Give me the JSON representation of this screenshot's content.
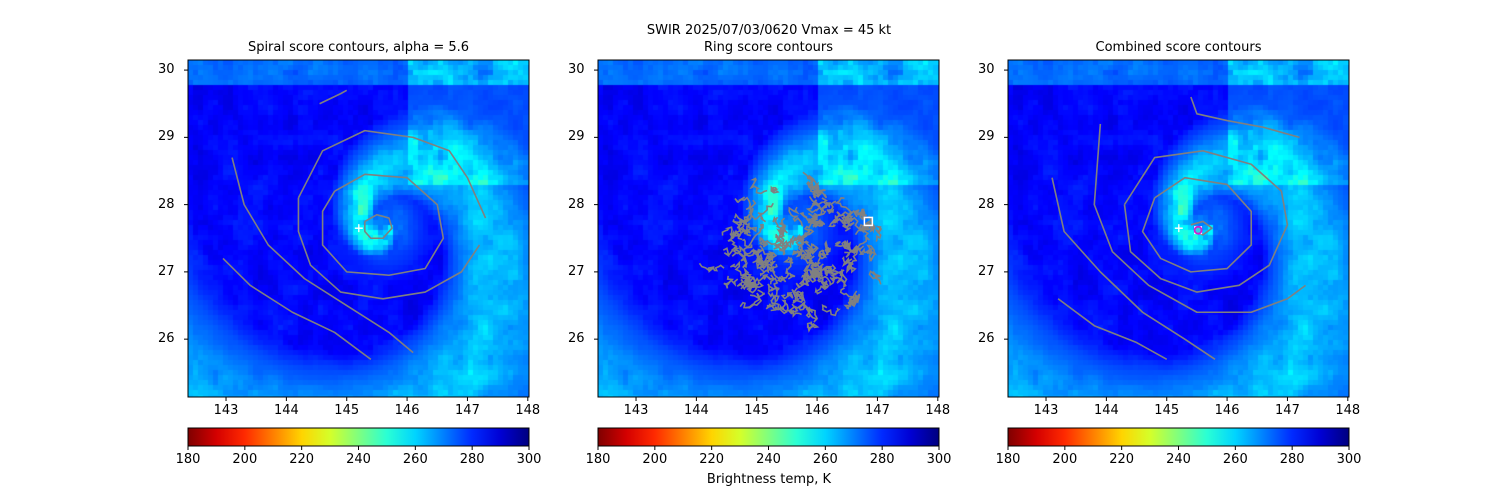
{
  "chart_data": {
    "type": "heatmap",
    "suptitle": "SWIR  2025/07/03/0620    Vmax = 45 kt",
    "colorbar": {
      "label": "Brightness temp, K",
      "range": [
        180,
        300
      ],
      "ticks": [
        "180",
        "200",
        "220",
        "240",
        "260",
        "280",
        "300"
      ],
      "colormap": "jet_reversed",
      "orientation": "horizontal"
    },
    "xlim": [
      142.37,
      148.02
    ],
    "ylim": [
      25.14,
      30.15
    ],
    "xticks": [
      "143",
      "144",
      "145",
      "146",
      "147",
      "148"
    ],
    "yticks": [
      "26",
      "27",
      "28",
      "29",
      "30"
    ],
    "contour_color": "#808080",
    "panels": [
      {
        "title": "Spiral score contours, alpha =  5.6",
        "markers": [
          {
            "type": "plus",
            "lon": 145.2,
            "lat": 27.65,
            "color": "#ffffff"
          }
        ],
        "contours": [
          [
            [
              145.3,
              27.75
            ],
            [
              145.5,
              27.85
            ],
            [
              145.7,
              27.8
            ],
            [
              145.75,
              27.65
            ],
            [
              145.6,
              27.5
            ],
            [
              145.4,
              27.5
            ],
            [
              145.3,
              27.6
            ],
            [
              145.3,
              27.75
            ]
          ],
          [
            [
              144.8,
              28.2
            ],
            [
              145.3,
              28.45
            ],
            [
              146.0,
              28.4
            ],
            [
              146.5,
              28.0
            ],
            [
              146.6,
              27.5
            ],
            [
              146.3,
              27.05
            ],
            [
              145.7,
              26.95
            ],
            [
              145.0,
              27.0
            ],
            [
              144.6,
              27.4
            ],
            [
              144.6,
              27.9
            ],
            [
              144.8,
              28.2
            ]
          ],
          [
            [
              144.2,
              28.1
            ],
            [
              144.6,
              28.8
            ],
            [
              145.3,
              29.1
            ],
            [
              146.1,
              29.0
            ],
            [
              146.7,
              28.8
            ],
            [
              147.0,
              28.4
            ],
            [
              147.2,
              28.0
            ],
            [
              147.3,
              27.8
            ]
          ],
          [
            [
              144.2,
              28.1
            ],
            [
              144.2,
              27.6
            ],
            [
              144.4,
              27.1
            ],
            [
              144.9,
              26.7
            ],
            [
              145.6,
              26.6
            ],
            [
              146.3,
              26.7
            ],
            [
              146.9,
              27.0
            ],
            [
              147.2,
              27.4
            ]
          ],
          [
            [
              143.1,
              28.7
            ],
            [
              143.3,
              28.0
            ],
            [
              143.7,
              27.4
            ],
            [
              144.3,
              26.9
            ],
            [
              145.0,
              26.5
            ],
            [
              145.7,
              26.1
            ],
            [
              146.1,
              25.8
            ]
          ],
          [
            [
              142.95,
              27.2
            ],
            [
              143.4,
              26.8
            ],
            [
              144.1,
              26.4
            ],
            [
              144.8,
              26.1
            ],
            [
              145.4,
              25.7
            ]
          ],
          [
            [
              144.55,
              29.5
            ],
            [
              144.9,
              29.65
            ],
            [
              145.0,
              29.7
            ]
          ]
        ]
      },
      {
        "title": "Ring score contours",
        "markers": [
          {
            "type": "square",
            "lon": 146.85,
            "lat": 27.75,
            "color": "#ffffff"
          }
        ],
        "ring_region": {
          "lon": 145.7,
          "lat": 27.3,
          "radius_deg": 1.3
        }
      },
      {
        "title": "Combined score contours",
        "markers": [
          {
            "type": "plus",
            "lon": 145.2,
            "lat": 27.65,
            "color": "#ffffff"
          },
          {
            "type": "circle",
            "lon": 145.52,
            "lat": 27.62,
            "color": "#d020d0"
          }
        ],
        "contours": [
          [
            [
              145.4,
              27.7
            ],
            [
              145.6,
              27.75
            ],
            [
              145.75,
              27.65
            ],
            [
              145.6,
              27.55
            ],
            [
              145.45,
              27.6
            ]
          ],
          [
            [
              144.8,
              28.1
            ],
            [
              145.3,
              28.4
            ],
            [
              146.0,
              28.3
            ],
            [
              146.4,
              27.9
            ],
            [
              146.4,
              27.4
            ],
            [
              146.0,
              27.05
            ],
            [
              145.4,
              27.0
            ],
            [
              144.9,
              27.2
            ],
            [
              144.6,
              27.6
            ],
            [
              144.8,
              28.1
            ]
          ],
          [
            [
              144.3,
              28.0
            ],
            [
              144.8,
              28.7
            ],
            [
              145.6,
              28.8
            ],
            [
              146.4,
              28.6
            ],
            [
              146.9,
              28.2
            ],
            [
              147.0,
              27.7
            ],
            [
              146.7,
              27.1
            ],
            [
              146.2,
              26.8
            ],
            [
              145.5,
              26.7
            ],
            [
              144.9,
              26.9
            ],
            [
              144.4,
              27.3
            ],
            [
              144.3,
              28.0
            ]
          ],
          [
            [
              143.9,
              29.2
            ],
            [
              143.8,
              28.0
            ],
            [
              144.1,
              27.3
            ],
            [
              144.7,
              26.8
            ],
            [
              145.5,
              26.4
            ],
            [
              146.4,
              26.4
            ],
            [
              147.0,
              26.6
            ],
            [
              147.3,
              26.8
            ]
          ],
          [
            [
              143.1,
              28.4
            ],
            [
              143.3,
              27.6
            ],
            [
              143.9,
              27.0
            ],
            [
              144.6,
              26.4
            ],
            [
              145.3,
              26.0
            ],
            [
              145.8,
              25.7
            ]
          ],
          [
            [
              143.2,
              26.6
            ],
            [
              143.8,
              26.2
            ],
            [
              144.5,
              25.95
            ],
            [
              145.0,
              25.7
            ]
          ],
          [
            [
              145.4,
              29.6
            ],
            [
              145.5,
              29.35
            ],
            [
              146.0,
              29.25
            ],
            [
              146.6,
              29.15
            ],
            [
              147.2,
              29.0
            ]
          ]
        ]
      }
    ]
  }
}
